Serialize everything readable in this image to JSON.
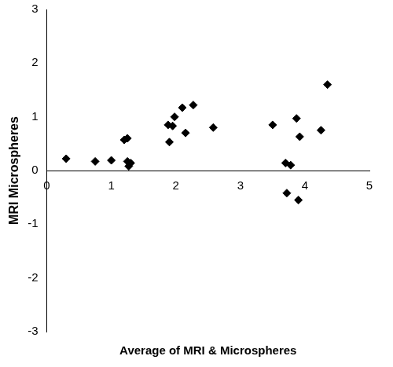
{
  "chart_data": {
    "type": "scatter",
    "x_label": "Average of MRI & Microspheres",
    "y_label": "MRI Microspheres",
    "x": [
      0.3,
      0.75,
      1.0,
      1.2,
      1.25,
      1.25,
      1.27,
      1.3,
      1.88,
      1.9,
      1.95,
      1.98,
      2.1,
      2.15,
      2.27,
      2.58,
      3.5,
      3.7,
      3.72,
      3.78,
      3.87,
      3.92,
      3.9,
      4.25,
      4.35
    ],
    "values": [
      0.22,
      0.17,
      0.19,
      0.57,
      0.6,
      0.17,
      0.08,
      0.14,
      0.85,
      0.53,
      0.83,
      1.0,
      1.17,
      0.7,
      1.22,
      0.8,
      0.85,
      0.14,
      -0.42,
      0.1,
      0.97,
      0.63,
      -0.55,
      0.75,
      1.6
    ],
    "color": "#000000",
    "marker": "diamond",
    "xlim": [
      0,
      5
    ],
    "xticks": [
      0,
      1,
      2,
      3,
      4,
      5
    ],
    "ylim": [
      -3,
      3
    ],
    "yticks": [
      -3,
      -2,
      -1,
      0,
      1,
      2,
      3
    ],
    "grid": false
  }
}
